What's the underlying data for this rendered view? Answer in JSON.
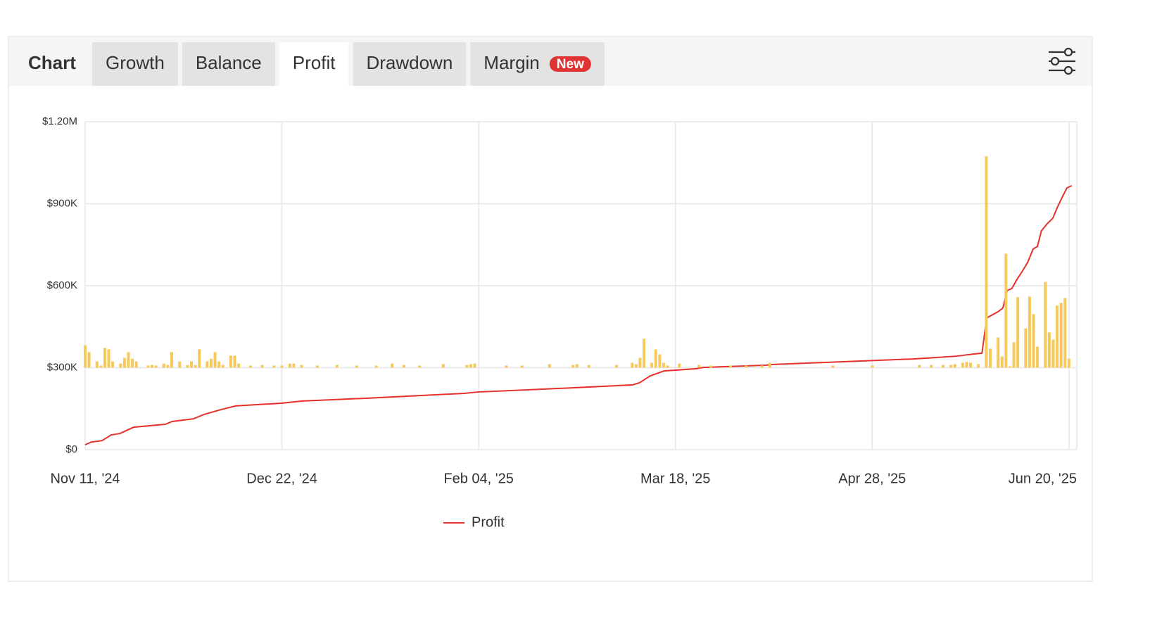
{
  "header": {
    "heading": "Chart",
    "tabs": [
      {
        "label": "Growth"
      },
      {
        "label": "Balance"
      },
      {
        "label": "Profit",
        "active": true
      },
      {
        "label": "Drawdown"
      },
      {
        "label": "Margin",
        "badge": "New"
      }
    ]
  },
  "chart_data": {
    "type": "line",
    "xlim": [
      0,
      252
    ],
    "xticks": [
      {
        "value": 0,
        "label": "Nov 11, '24"
      },
      {
        "value": 50,
        "label": "Dec 22, '24"
      },
      {
        "value": 100,
        "label": "Feb 04, '25"
      },
      {
        "value": 150,
        "label": "Mar 18, '25"
      },
      {
        "value": 200,
        "label": "Apr 28, '25"
      },
      {
        "value": 250,
        "label": "Jun 20, '25"
      }
    ],
    "ylim": [
      0,
      1200000
    ],
    "yticks": [
      {
        "value": 0,
        "label": "$0"
      },
      {
        "value": 300000,
        "label": "$300K"
      },
      {
        "value": 600000,
        "label": "$600K"
      },
      {
        "value": 900000,
        "label": "$900K"
      },
      {
        "value": 1200000,
        "label": "$1.20M"
      }
    ],
    "y2lim": [
      -300000,
      900000
    ],
    "grid": true,
    "series": [
      {
        "name": "Profit",
        "color": "#e5312b",
        "x": [
          0,
          1.6,
          4.3,
          6.6,
          8.8,
          12.3,
          20.4,
          22.1,
          27.5,
          30.2,
          34.6,
          38.2,
          49.8,
          55.2,
          71.2,
          78.4,
          96.3,
          99.8,
          124.8,
          139.1,
          140.9,
          143.6,
          147.1,
          155.2,
          157,
          173,
          174.8,
          192.7,
          210.5,
          221.3,
          225.7,
          227.9,
          229.1,
          232,
          233.2,
          234.3,
          235.5,
          236.8,
          238.2,
          239.5,
          240.9,
          242,
          243,
          244.5,
          245.9,
          247.1,
          248.4,
          249.5,
          250.7
        ],
        "values": [
          18000,
          28000,
          33000,
          54000,
          59000,
          82000,
          93000,
          103000,
          113000,
          129000,
          147000,
          160000,
          170000,
          178000,
          188000,
          193000,
          206000,
          211000,
          227000,
          237000,
          245000,
          270000,
          288000,
          296000,
          301000,
          309000,
          312000,
          322000,
          332000,
          342000,
          350000,
          353000,
          482000,
          505000,
          518000,
          582000,
          590000,
          623000,
          654000,
          685000,
          734000,
          744000,
          801000,
          827000,
          847000,
          888000,
          927000,
          958000,
          966000
        ]
      },
      {
        "color": "#f7c95c",
        "axis": "y2",
        "x": [
          0,
          1,
          3,
          4,
          5,
          6,
          7,
          9,
          10,
          11,
          12,
          13,
          16,
          17,
          18,
          20,
          21,
          22,
          24,
          26,
          27,
          28,
          29,
          31,
          32,
          33,
          34,
          35,
          37,
          38,
          39,
          42,
          45,
          48,
          50,
          52,
          53,
          55,
          59,
          64,
          69,
          74,
          78,
          81,
          85,
          91,
          97,
          98,
          99,
          107,
          111,
          118,
          124,
          125,
          128,
          135,
          139,
          140,
          141,
          142,
          144,
          145,
          146,
          147,
          148,
          151,
          156,
          159,
          164,
          168,
          172,
          174,
          190,
          200,
          212,
          215,
          218,
          220,
          221,
          223,
          224,
          225,
          227,
          229,
          230,
          232,
          233,
          234,
          235,
          236,
          237,
          239,
          240,
          241,
          242,
          244,
          245,
          246,
          247,
          248,
          249,
          250
        ],
        "values": [
          82000,
          57000,
          23000,
          8000,
          72000,
          67000,
          23000,
          15000,
          36000,
          57000,
          33000,
          23000,
          8000,
          10000,
          8000,
          15000,
          10000,
          57000,
          23000,
          10000,
          23000,
          10000,
          67000,
          23000,
          33000,
          57000,
          23000,
          10000,
          44000,
          44000,
          15000,
          8000,
          10000,
          8000,
          8000,
          15000,
          15000,
          10000,
          8000,
          10000,
          8000,
          8000,
          15000,
          10000,
          8000,
          13000,
          10000,
          13000,
          15000,
          8000,
          8000,
          13000,
          10000,
          13000,
          10000,
          10000,
          18000,
          13000,
          36000,
          106000,
          18000,
          67000,
          49000,
          18000,
          8000,
          15000,
          10000,
          8000,
          8000,
          8000,
          8000,
          18000,
          8000,
          8000,
          10000,
          10000,
          10000,
          10000,
          13000,
          18000,
          21000,
          18000,
          13000,
          773000,
          70000,
          111000,
          41000,
          417000,
          5000,
          93000,
          258000,
          144000,
          260000,
          196000,
          77000,
          314000,
          129000,
          103000,
          227000,
          237000,
          255000,
          33000
        ]
      }
    ]
  }
}
